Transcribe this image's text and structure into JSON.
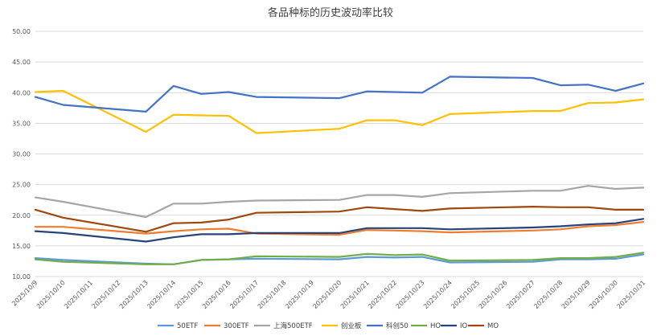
{
  "chart_data": {
    "type": "line",
    "title": "各品种标的历史波动率比较",
    "xlabel": "",
    "ylabel": "",
    "ylim": [
      10,
      50
    ],
    "yticks": [
      "10.00",
      "15.00",
      "20.00",
      "25.00",
      "30.00",
      "35.00",
      "40.00",
      "45.00",
      "50.00"
    ],
    "grid": true,
    "legend_position": "bottom",
    "categories": [
      "2025/10/9",
      "2025/10/10",
      "2025/10/11",
      "2025/10/12",
      "2025/10/13",
      "2025/10/14",
      "2025/10/15",
      "2025/10/16",
      "2025/10/17",
      "2025/10/18",
      "2025/10/19",
      "2025/10/20",
      "2025/10/21",
      "2025/10/22",
      "2025/10/23",
      "2025/10/24",
      "2025/10/25",
      "2025/10/26",
      "2025/10/27",
      "2025/10/28",
      "2025/10/29",
      "2025/10/30",
      "2025/10/31"
    ],
    "x": [
      "2025/10/9",
      "2025/10/10",
      "2025/10/13",
      "2025/10/14",
      "2025/10/15",
      "2025/10/16",
      "2025/10/17",
      "2025/10/20",
      "2025/10/21",
      "2025/10/22",
      "2025/10/23",
      "2025/10/24",
      "2025/10/27",
      "2025/10/28",
      "2025/10/29",
      "2025/10/30",
      "2025/10/31"
    ],
    "series": [
      {
        "name": "50ETF",
        "color": "#5b9bd5",
        "values": [
          13.0,
          12.7,
          12.1,
          12.0,
          12.7,
          12.8,
          12.9,
          12.8,
          13.2,
          13.1,
          13.2,
          12.3,
          12.4,
          12.8,
          12.8,
          12.9,
          13.6
        ]
      },
      {
        "name": "300ETF",
        "color": "#ed7d31",
        "values": [
          18.1,
          18.1,
          17.0,
          17.4,
          17.7,
          17.8,
          17.0,
          16.8,
          17.6,
          17.5,
          17.4,
          17.2,
          17.5,
          17.7,
          18.2,
          18.4,
          18.9
        ]
      },
      {
        "name": "上海500ETF",
        "color": "#a5a5a5",
        "values": [
          22.9,
          22.2,
          19.7,
          21.9,
          21.9,
          22.2,
          22.4,
          22.5,
          23.3,
          23.3,
          23.0,
          23.6,
          24.0,
          24.0,
          24.8,
          24.3,
          24.5
        ]
      },
      {
        "name": "创业板",
        "color": "#ffc000",
        "values": [
          40.1,
          40.3,
          33.6,
          36.4,
          36.3,
          36.2,
          33.4,
          34.1,
          35.5,
          35.5,
          34.7,
          36.5,
          37.0,
          37.0,
          38.3,
          38.4,
          38.9
        ]
      },
      {
        "name": "科创50",
        "color": "#4472c4",
        "values": [
          39.3,
          38.0,
          36.9,
          41.1,
          39.8,
          40.1,
          39.3,
          39.1,
          40.2,
          40.1,
          40.0,
          42.6,
          42.4,
          41.2,
          41.3,
          40.3,
          41.5
        ]
      },
      {
        "name": "HO",
        "color": "#70ad47",
        "values": [
          12.8,
          12.4,
          12.0,
          12.0,
          12.7,
          12.8,
          13.3,
          13.2,
          13.7,
          13.5,
          13.6,
          12.6,
          12.7,
          13.0,
          13.0,
          13.2,
          13.9
        ]
      },
      {
        "name": "IO",
        "color": "#264478",
        "values": [
          17.4,
          17.1,
          15.7,
          16.4,
          16.9,
          16.9,
          17.1,
          17.1,
          17.9,
          17.9,
          17.9,
          17.7,
          18.0,
          18.2,
          18.5,
          18.7,
          19.4
        ]
      },
      {
        "name": "MO",
        "color": "#9e480e",
        "values": [
          20.9,
          19.6,
          17.3,
          18.7,
          18.8,
          19.3,
          20.4,
          20.6,
          21.3,
          21.0,
          20.7,
          21.1,
          21.4,
          21.3,
          21.3,
          20.9,
          20.9
        ]
      }
    ]
  }
}
